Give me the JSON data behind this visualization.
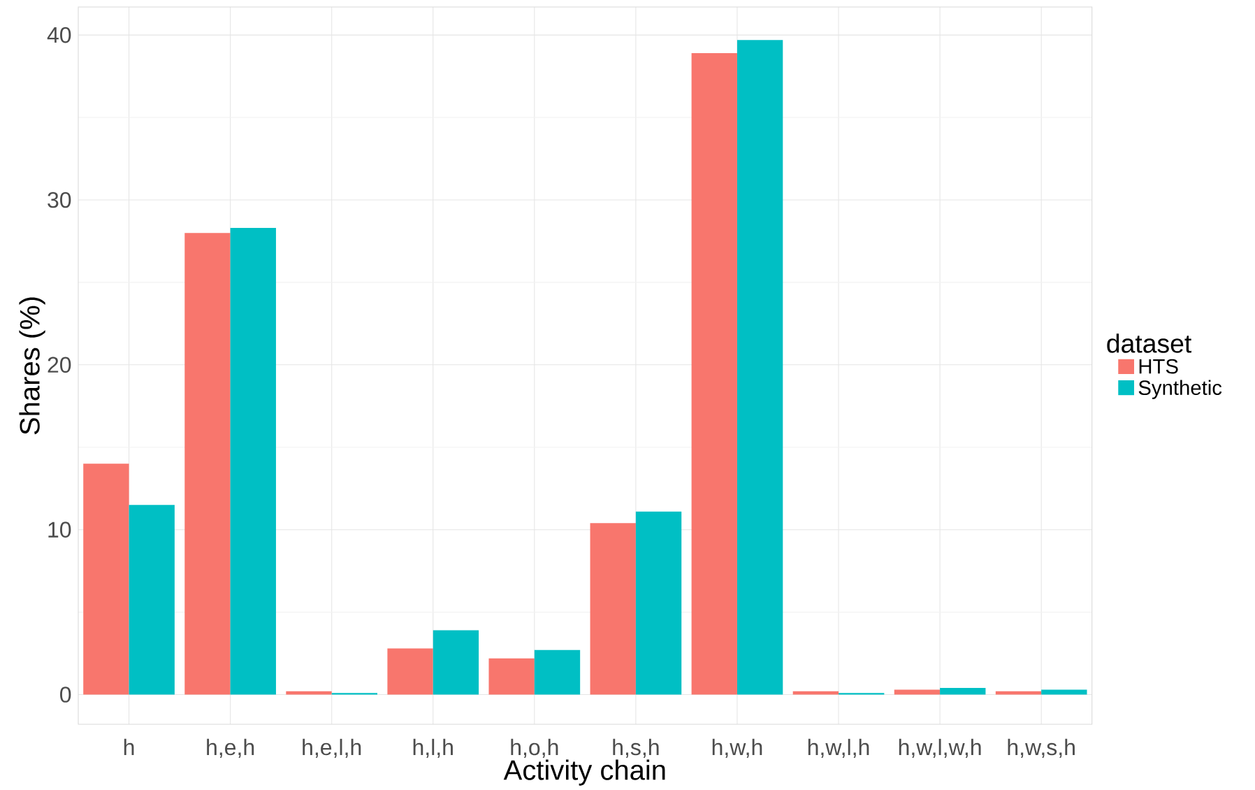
{
  "chart_data": {
    "type": "bar",
    "xlabel": "Activity chain",
    "ylabel": "Shares (%)",
    "legend_title": "dataset",
    "categories": [
      "h",
      "h,e,h",
      "h,e,l,h",
      "h,l,h",
      "h,o,h",
      "h,s,h",
      "h,w,h",
      "h,w,l,h",
      "h,w,l,w,h",
      "h,w,s,h"
    ],
    "series": [
      {
        "name": "HTS",
        "color": "#f8766d",
        "values": [
          14.0,
          28.0,
          0.2,
          2.8,
          2.2,
          10.4,
          38.9,
          0.2,
          0.3,
          0.2
        ]
      },
      {
        "name": "Synthetic",
        "color": "#00bfc4",
        "values": [
          11.5,
          28.3,
          0.1,
          3.9,
          2.7,
          11.1,
          39.7,
          0.1,
          0.4,
          0.3
        ]
      }
    ],
    "ylim": [
      -1.8,
      41.7
    ],
    "yticks": [
      0,
      10,
      20,
      30,
      40
    ],
    "grid": true,
    "legend": "right"
  }
}
